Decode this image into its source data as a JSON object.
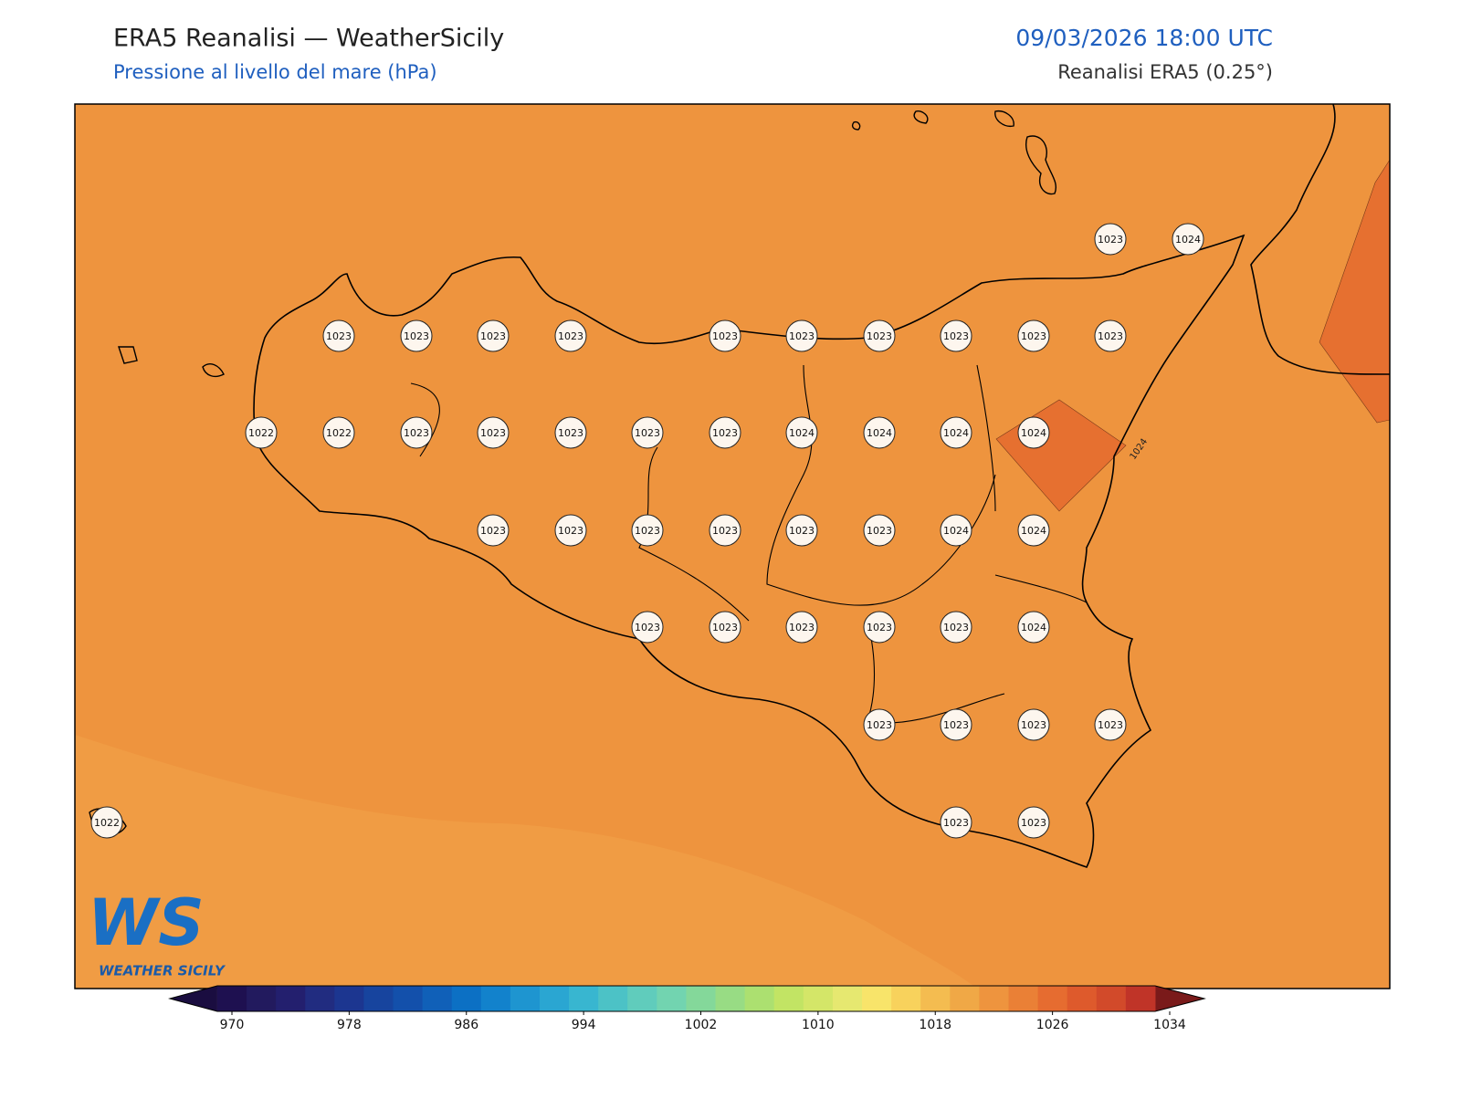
{
  "header": {
    "title": "ERA5 Reanalisi — WeatherSicily",
    "subtitle": "Pressione al livello del mare (hPa)",
    "datetime": "09/03/2026 18:00 UTC",
    "source": "Reanalisi ERA5 (0.25°)"
  },
  "map": {
    "background_value": 1023,
    "contour_label": "1024",
    "stations": [
      1023,
      1023,
      1023,
      1023,
      1023,
      1023,
      1023,
      1023,
      1023,
      1023,
      1023,
      1024,
      1022,
      1022,
      1023,
      1023,
      1023,
      1023,
      1023,
      1024,
      1024,
      1024,
      1024,
      1023,
      1023,
      1023,
      1023,
      1023,
      1023,
      1024,
      1024,
      1023,
      1023,
      1023,
      1023,
      1023,
      1024,
      1023,
      1023,
      1023,
      1023,
      1022,
      1023,
      1023
    ]
  },
  "logo": {
    "mark": "WS",
    "text": "WEATHER SICILY"
  },
  "colorbar": {
    "lim": [
      970,
      1034
    ],
    "ticks": [
      970,
      978,
      986,
      994,
      1002,
      1010,
      1018,
      1026,
      1034
    ],
    "levels": [
      970,
      972,
      974,
      976,
      978,
      980,
      982,
      984,
      986,
      988,
      990,
      992,
      994,
      996,
      998,
      1000,
      1002,
      1004,
      1006,
      1008,
      1010,
      1012,
      1014,
      1016,
      1018,
      1020,
      1022,
      1024,
      1026,
      1028,
      1030,
      1032
    ],
    "colors": [
      "#1e1050",
      "#221a5e",
      "#231f6e",
      "#212c80",
      "#1c3690",
      "#17449e",
      "#1350ab",
      "#1060b8",
      "#0c70c4",
      "#1282cc",
      "#1e95d0",
      "#2aa6d2",
      "#38b6d0",
      "#4cc2c6",
      "#60ccbc",
      "#72d4b0",
      "#84d89a",
      "#98dc84",
      "#ace070",
      "#c2e464",
      "#d4e668",
      "#e6e870",
      "#f8e46a",
      "#f8d25c",
      "#f4bc50",
      "#f0a846",
      "#ee943e",
      "#ea8036",
      "#e66c30",
      "#de5a2c",
      "#d24a2a",
      "#c03428"
    ],
    "under": "#1a0d40",
    "over": "#7a1a1a"
  }
}
